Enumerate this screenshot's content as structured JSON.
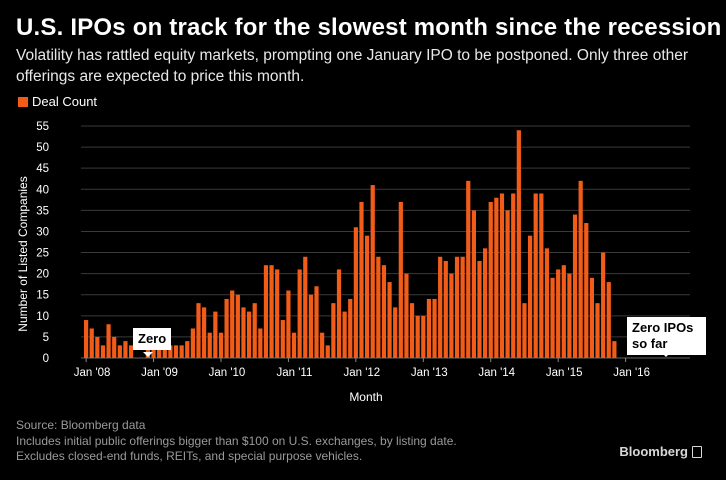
{
  "title": "U.S. IPOs on track for the slowest month since the recession",
  "subtitle": "Volatility has rattled equity markets, prompting one January IPO to be postponed. Only three other offerings are expected to price this month.",
  "colors": {
    "bar": "#f25c19",
    "background": "#000000",
    "grid": "#3a3a3a"
  },
  "footer": {
    "source": "Source: Bloomberg data",
    "note1": "Includes initial public offerings bigger than $100 on U.S. exchanges, by listing date.",
    "note2": "Excludes closed-end funds, REITs, and special purpose vehicles."
  },
  "brand": "Bloomberg",
  "annotations": {
    "zero": "Zero",
    "zero_ipos": "Zero IPOs\nso far"
  },
  "chart_data": {
    "type": "bar",
    "title": "U.S. IPOs on track for the slowest month since the recession",
    "xlabel": "Month",
    "ylabel": "Number of Listed Companies",
    "legend": {
      "label": "Deal Count",
      "placement": "top-left"
    },
    "ylim": [
      0,
      55
    ],
    "yticks": [
      0,
      5,
      10,
      15,
      20,
      25,
      30,
      35,
      40,
      45,
      50,
      55
    ],
    "grid": true,
    "xtick_labels": [
      "Jan '08",
      "Jan '09",
      "Jan '10",
      "Jan '11",
      "Jan '12",
      "Jan '13",
      "Jan '14",
      "Jan '15",
      "Jan '16"
    ],
    "xtick_start_index": [
      0,
      12,
      24,
      36,
      48,
      60,
      72,
      84,
      96
    ],
    "start_month": "Jan 2008",
    "values": [
      9,
      7,
      5,
      3,
      8,
      5,
      3,
      4,
      3,
      0,
      0,
      2,
      3,
      2,
      3,
      3,
      3,
      3,
      4,
      7,
      13,
      12,
      6,
      11,
      6,
      14,
      16,
      15,
      12,
      11,
      13,
      7,
      22,
      22,
      21,
      9,
      16,
      6,
      21,
      24,
      15,
      17,
      6,
      3,
      13,
      21,
      11,
      14,
      31,
      37,
      29,
      41,
      24,
      22,
      18,
      12,
      37,
      20,
      13,
      10,
      10,
      14,
      14,
      24,
      23,
      20,
      24,
      24,
      42,
      35,
      23,
      26,
      37,
      38,
      39,
      35,
      39,
      54,
      13,
      29,
      39,
      39,
      26,
      19,
      21,
      22,
      20,
      34,
      42,
      32,
      19,
      13,
      25,
      18,
      4,
      0,
      0
    ]
  }
}
